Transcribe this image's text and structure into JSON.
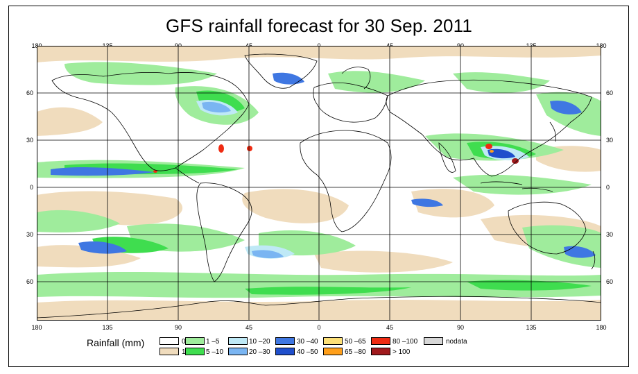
{
  "title": "GFS rainfall forecast for 30 Sep. 2011",
  "top_ticks": [
    "180",
    "135",
    "90",
    "45",
    "0",
    "45",
    "90",
    "135",
    "180"
  ],
  "bottom_ticks": [
    "180",
    "135",
    "90",
    "45",
    "0",
    "45",
    "90",
    "135",
    "180"
  ],
  "left_ticks": [
    "60",
    "30",
    "0",
    "30",
    "60"
  ],
  "right_ticks": [
    "60",
    "30",
    "0",
    "30",
    "60"
  ],
  "legend": {
    "title": "Rainfall (mm)",
    "items": [
      {
        "label": "0",
        "color": "#ffffff"
      },
      {
        "label": "1",
        "color": "#f0dcbd"
      },
      {
        "label": "1 –5",
        "color": "#9fec9c"
      },
      {
        "label": "5 –10",
        "color": "#3fdd4f"
      },
      {
        "label": "10 –20",
        "color": "#bfe9f6"
      },
      {
        "label": "20 –30",
        "color": "#7ab5f2"
      },
      {
        "label": "30 –40",
        "color": "#3f77e2"
      },
      {
        "label": "40 –50",
        "color": "#1f4fcc"
      },
      {
        "label": "50 –65",
        "color": "#fde077"
      },
      {
        "label": "65 –80",
        "color": "#ff9f1a"
      },
      {
        "label": "80 –100",
        "color": "#ef2b12"
      },
      {
        "label": "> 100",
        "color": "#a0191c"
      },
      {
        "label": "nodata",
        "color": "#d7d7d7"
      }
    ]
  }
}
